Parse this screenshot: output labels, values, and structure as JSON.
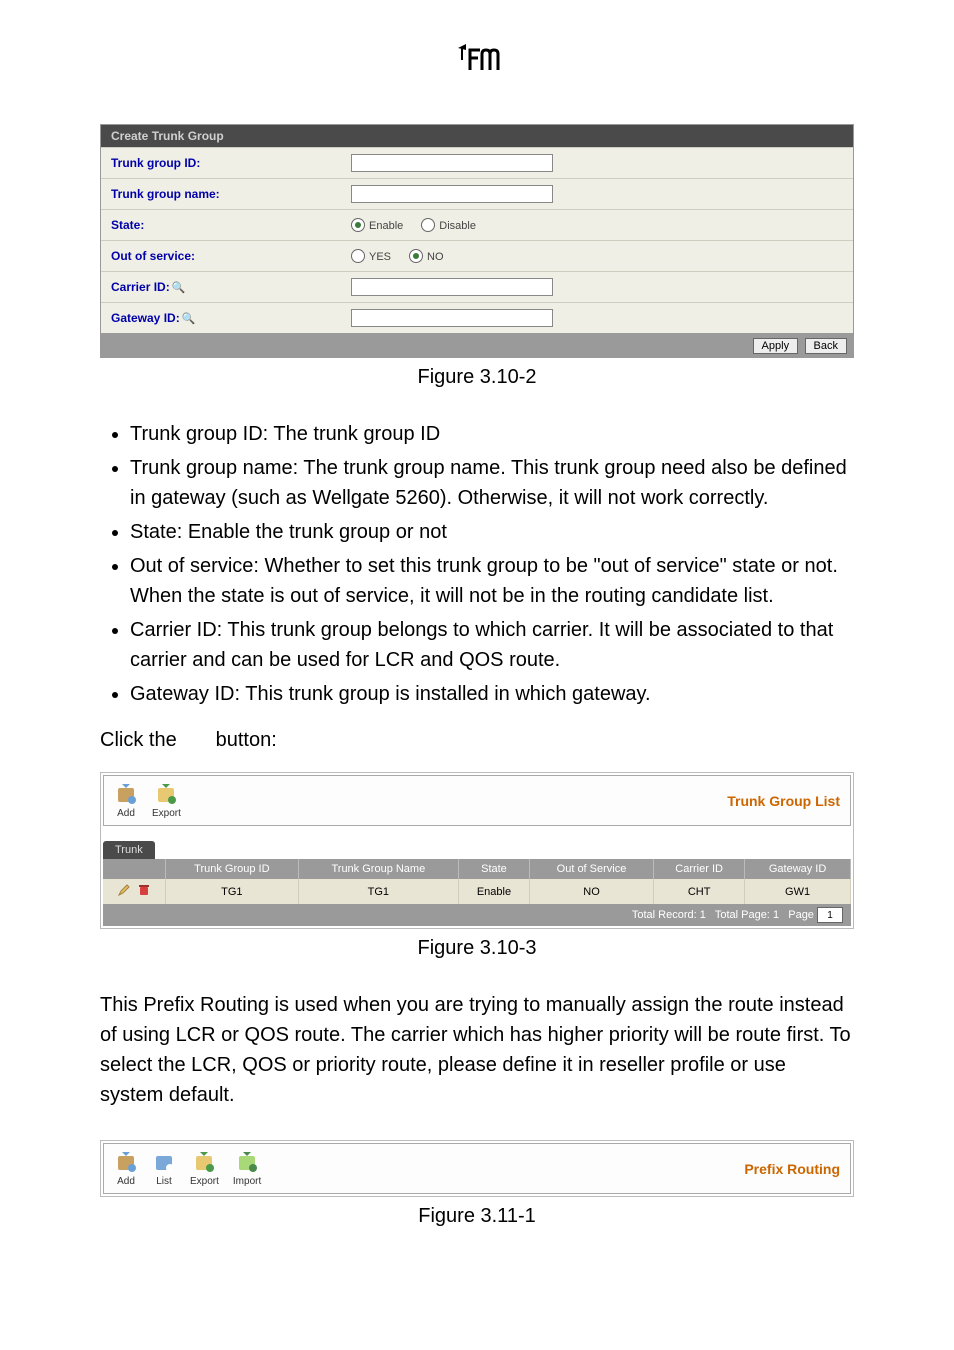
{
  "logo": {
    "text": "fm"
  },
  "figure1": {
    "header": "Create Trunk Group",
    "rows": [
      {
        "label": "Trunk group ID:",
        "type": "text"
      },
      {
        "label": "Trunk group name:",
        "type": "text"
      },
      {
        "label": "State:",
        "type": "radio",
        "opt1": "Enable",
        "opt2": "Disable",
        "checked": 1
      },
      {
        "label": "Out of service:",
        "type": "radio",
        "opt1": "YES",
        "opt2": "NO",
        "checked": 2
      },
      {
        "label": "Carrier ID:",
        "type": "text",
        "magnifier": true
      },
      {
        "label": "Gateway ID:",
        "type": "text",
        "magnifier": true
      }
    ],
    "buttons": {
      "apply": "Apply",
      "back": "Back"
    },
    "caption": "Figure 3.10-2"
  },
  "bullets": [
    "Trunk group ID: The trunk group ID",
    "Trunk group name: The trunk group name. This trunk group need also be defined in gateway (such as Wellgate 5260). Otherwise, it will not work correctly.",
    "State: Enable the trunk group or not",
    "Out of service: Whether to set this trunk group to be \"out of service\" state or not. When the state is out of service, it will not be in the routing candidate list.",
    "Carrier ID: This trunk group belongs to which carrier. It will be associated to that carrier and can be used for LCR and QOS route.",
    "Gateway ID: This trunk group is installed in which gateway."
  ],
  "click_line": {
    "pre": "Click the ",
    "post": " button:"
  },
  "toolbar1": {
    "buttons": [
      {
        "name": "add",
        "label": "Add",
        "icon_fill": "#c8a060",
        "icon_accent": "#6aa0d8"
      },
      {
        "name": "export",
        "label": "Export",
        "icon_fill": "#e8c870",
        "icon_accent": "#4a9a4a"
      }
    ],
    "title": "Trunk Group List"
  },
  "list": {
    "tab": "Trunk",
    "columns": [
      "",
      "Trunk Group ID",
      "Trunk Group Name",
      "State",
      "Out of Service",
      "Carrier ID",
      "Gateway ID"
    ],
    "row": {
      "tg_id": "TG1",
      "tg_name": "TG1",
      "state": "Enable",
      "oos": "NO",
      "carrier": "CHT",
      "gateway": "GW1"
    },
    "footer": {
      "records_label": "Total Record:",
      "records": "1",
      "pages_label": "Total Page:",
      "pages": "1",
      "page_label": "Page",
      "page_value": "1"
    },
    "caption": "Figure 3.10-3"
  },
  "paragraph": "This Prefix Routing is used when you are trying to manually assign the route instead of using LCR or QOS route. The carrier which has higher priority will be route first. To select the LCR, QOS or priority route, please define it in reseller profile or use system default.",
  "toolbar2": {
    "buttons": [
      {
        "name": "add",
        "label": "Add",
        "icon_fill": "#c8a060",
        "icon_accent": "#6aa0d8"
      },
      {
        "name": "list",
        "label": "List",
        "icon_fill": "#7aa8d8",
        "icon_accent": "#ffffff"
      },
      {
        "name": "export",
        "label": "Export",
        "icon_fill": "#e8c870",
        "icon_accent": "#4a9a4a"
      },
      {
        "name": "import",
        "label": "Import",
        "icon_fill": "#a8d878",
        "icon_accent": "#4a8a4a"
      }
    ],
    "title": "Prefix Routing",
    "caption": "Figure 3.11-1"
  }
}
